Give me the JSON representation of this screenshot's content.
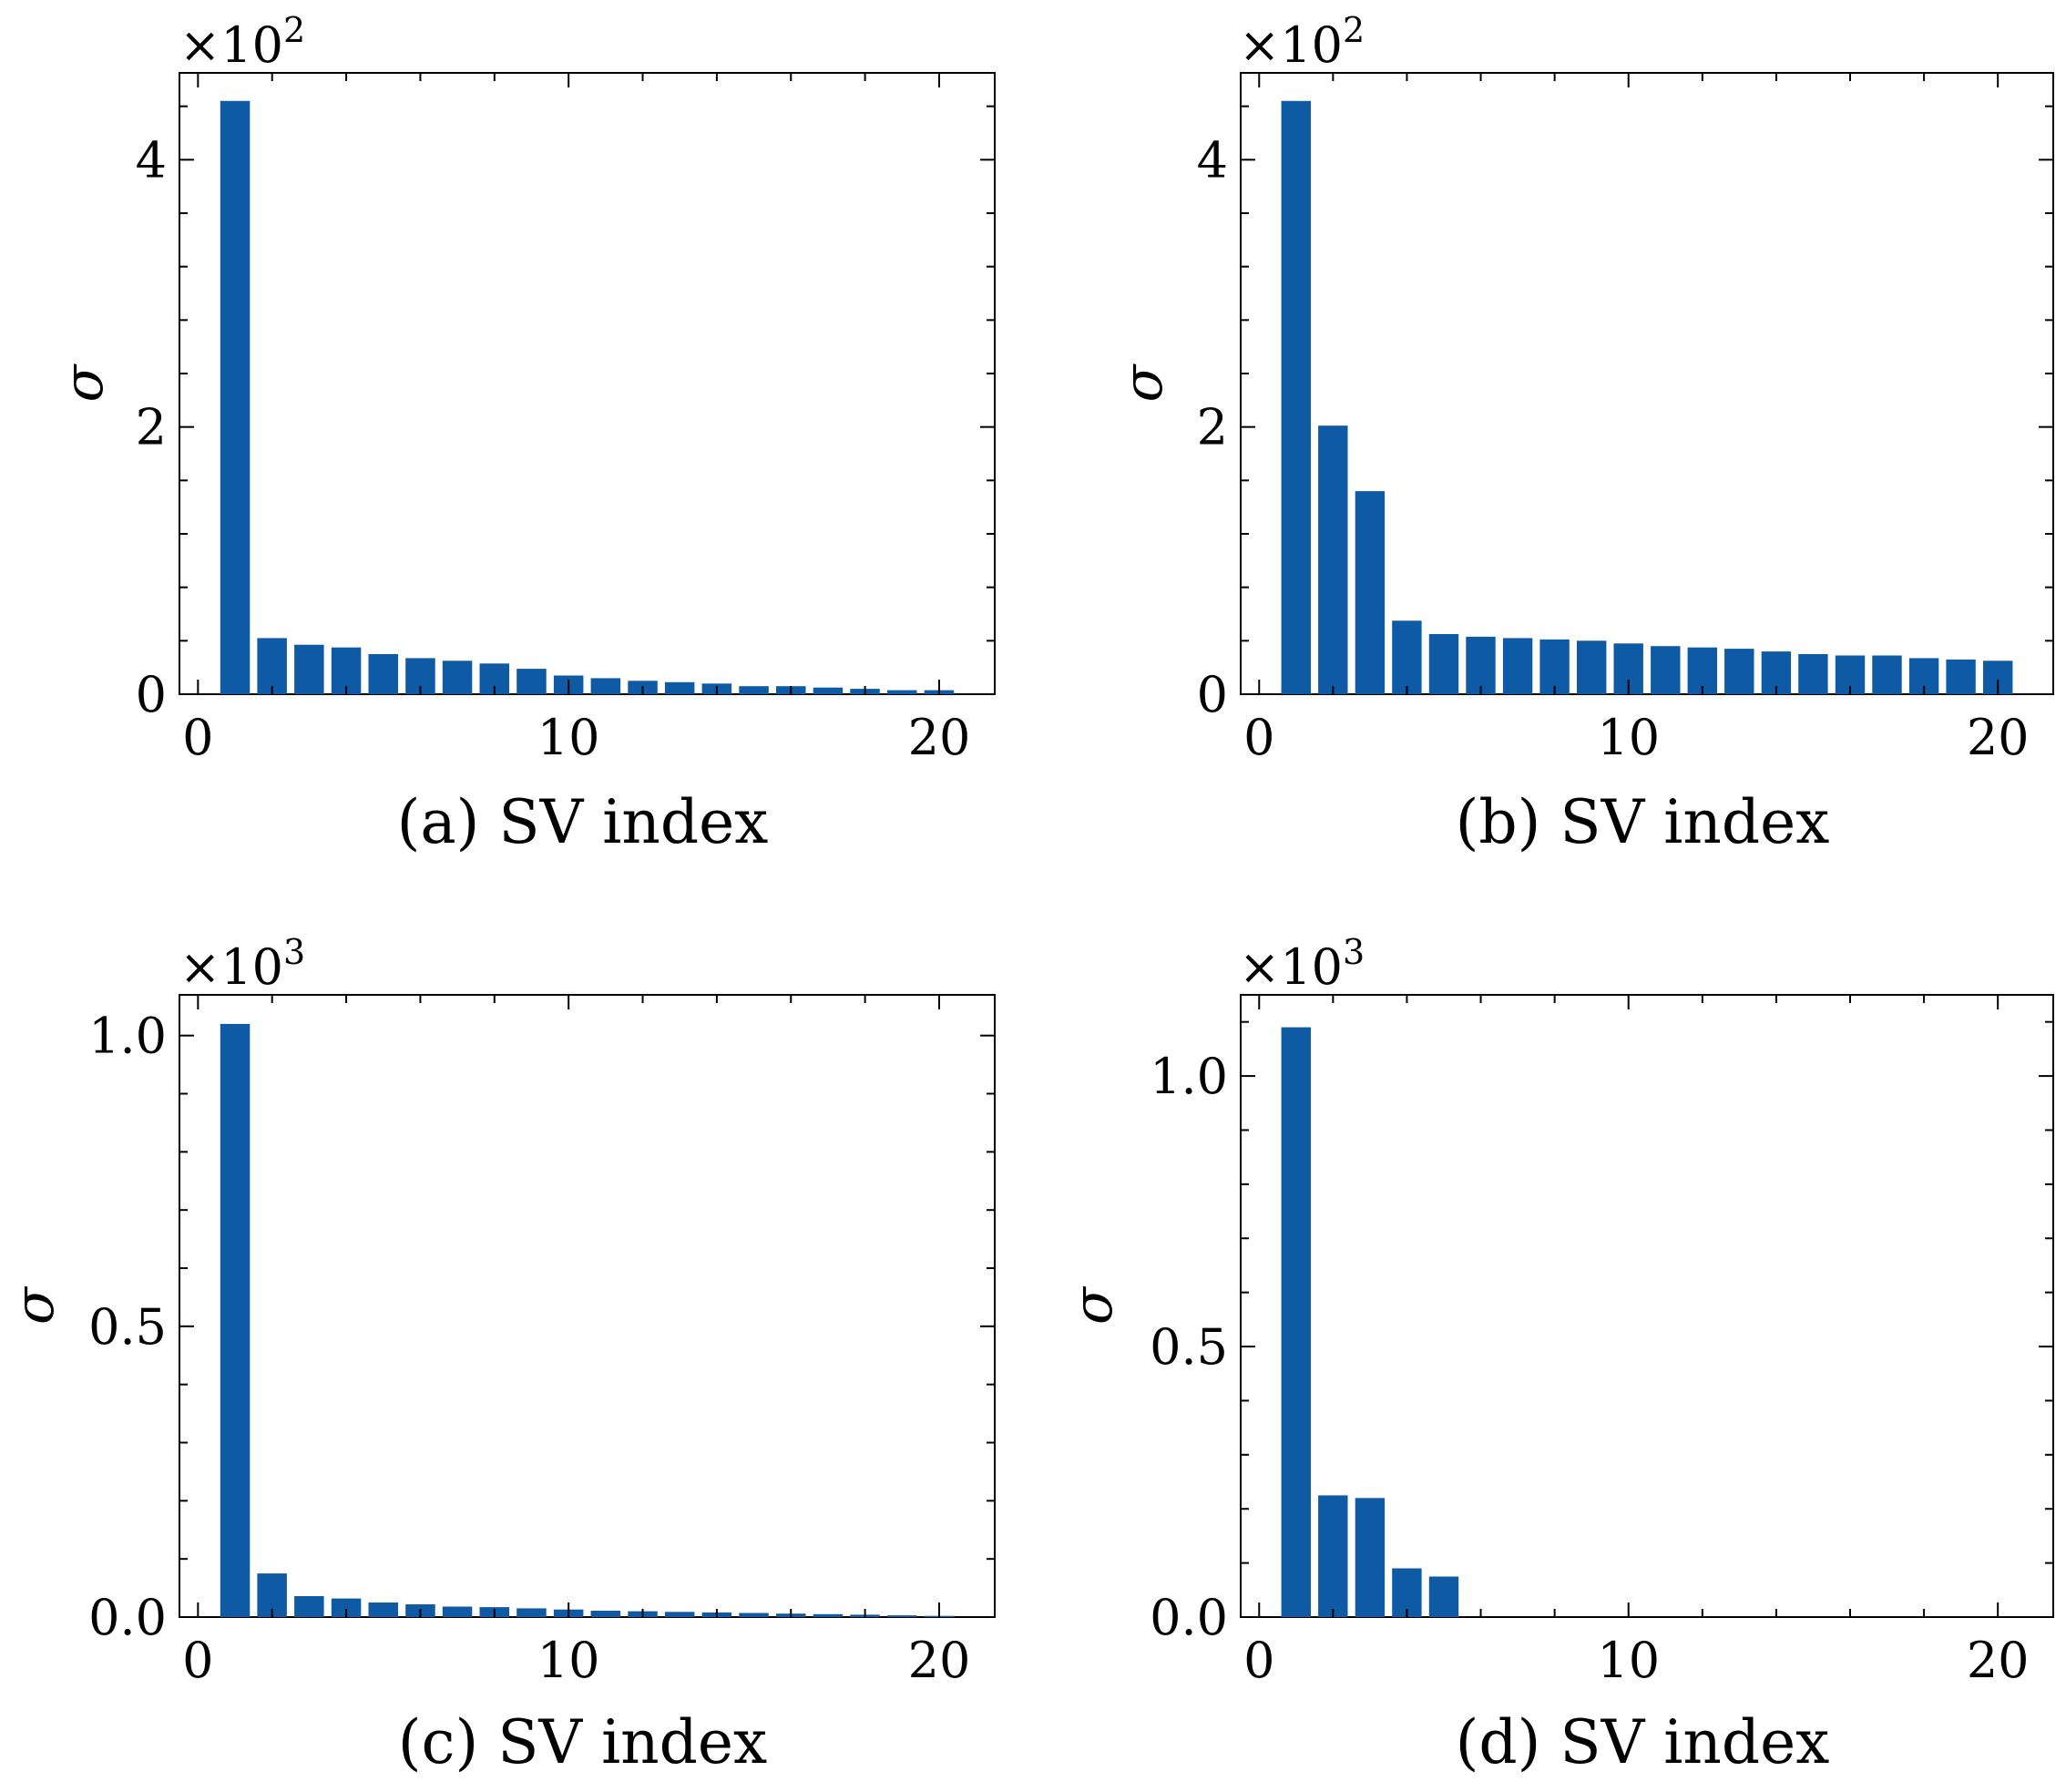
{
  "colors": {
    "bar": "#0f5aa5",
    "axis": "#000000",
    "background": "#ffffff"
  },
  "chart_data": [
    {
      "panel": "a",
      "type": "bar",
      "xlabel": "(a) SV index",
      "ylabel": "σ",
      "multiplier": {
        "base": "×10",
        "exp": "2"
      },
      "xlim": [
        -0.5,
        21.5
      ],
      "ylim": [
        0,
        4.65
      ],
      "xticks": [
        0,
        10,
        20
      ],
      "xtick_labels": [
        "0",
        "10",
        "20"
      ],
      "yticks": [
        0,
        2,
        4
      ],
      "ytick_labels": [
        "0",
        "2",
        "4"
      ],
      "x": [
        1,
        2,
        3,
        4,
        5,
        6,
        7,
        8,
        9,
        10,
        11,
        12,
        13,
        14,
        15,
        16,
        17,
        18,
        19,
        20
      ],
      "values": [
        4.44,
        0.42,
        0.37,
        0.35,
        0.3,
        0.27,
        0.25,
        0.23,
        0.19,
        0.14,
        0.12,
        0.1,
        0.09,
        0.08,
        0.06,
        0.06,
        0.05,
        0.04,
        0.03,
        0.03
      ],
      "grid": false
    },
    {
      "panel": "b",
      "type": "bar",
      "xlabel": "(b) SV index",
      "ylabel": "σ",
      "multiplier": {
        "base": "×10",
        "exp": "2"
      },
      "xlim": [
        -0.5,
        21.5
      ],
      "ylim": [
        0,
        4.65
      ],
      "xticks": [
        0,
        10,
        20
      ],
      "xtick_labels": [
        "0",
        "10",
        "20"
      ],
      "yticks": [
        0,
        2,
        4
      ],
      "ytick_labels": [
        "0",
        "2",
        "4"
      ],
      "x": [
        1,
        2,
        3,
        4,
        5,
        6,
        7,
        8,
        9,
        10,
        11,
        12,
        13,
        14,
        15,
        16,
        17,
        18,
        19,
        20
      ],
      "values": [
        4.44,
        2.01,
        1.52,
        0.55,
        0.45,
        0.43,
        0.42,
        0.41,
        0.4,
        0.38,
        0.36,
        0.35,
        0.34,
        0.32,
        0.3,
        0.29,
        0.29,
        0.27,
        0.26,
        0.25
      ],
      "grid": false
    },
    {
      "panel": "c",
      "type": "bar",
      "xlabel": "(c) SV index",
      "ylabel": "σ",
      "multiplier": {
        "base": "×10",
        "exp": "3"
      },
      "xlim": [
        -0.5,
        21.5
      ],
      "ylim": [
        0,
        1.07
      ],
      "xticks": [
        0,
        10,
        20
      ],
      "xtick_labels": [
        "0",
        "10",
        "20"
      ],
      "yticks": [
        0,
        0.5,
        1.0
      ],
      "ytick_labels": [
        "0.0",
        "0.5",
        "1.0"
      ],
      "x": [
        1,
        2,
        3,
        4,
        5,
        6,
        7,
        8,
        9,
        10,
        11,
        12,
        13,
        14,
        15,
        16,
        17,
        18,
        19,
        20
      ],
      "values": [
        1.02,
        0.075,
        0.036,
        0.032,
        0.025,
        0.022,
        0.018,
        0.017,
        0.015,
        0.013,
        0.011,
        0.01,
        0.009,
        0.008,
        0.007,
        0.006,
        0.005,
        0.004,
        0.003,
        0.002
      ],
      "grid": false
    },
    {
      "panel": "d",
      "type": "bar",
      "xlabel": "(d) SV index",
      "ylabel": "σ",
      "multiplier": {
        "base": "×10",
        "exp": "3"
      },
      "xlim": [
        -0.5,
        21.5
      ],
      "ylim": [
        0,
        1.15
      ],
      "xticks": [
        0,
        10,
        20
      ],
      "xtick_labels": [
        "0",
        "10",
        "20"
      ],
      "yticks": [
        0,
        0.5,
        1.0
      ],
      "ytick_labels": [
        "0.0",
        "0.5",
        "1.0"
      ],
      "x": [
        1,
        2,
        3,
        4,
        5,
        6,
        7,
        8,
        9,
        10,
        11,
        12,
        13,
        14,
        15,
        16,
        17,
        18,
        19,
        20
      ],
      "values": [
        1.09,
        0.225,
        0.22,
        0.09,
        0.075,
        0,
        0,
        0,
        0,
        0,
        0,
        0,
        0,
        0,
        0,
        0,
        0,
        0,
        0,
        0
      ],
      "grid": false
    }
  ]
}
